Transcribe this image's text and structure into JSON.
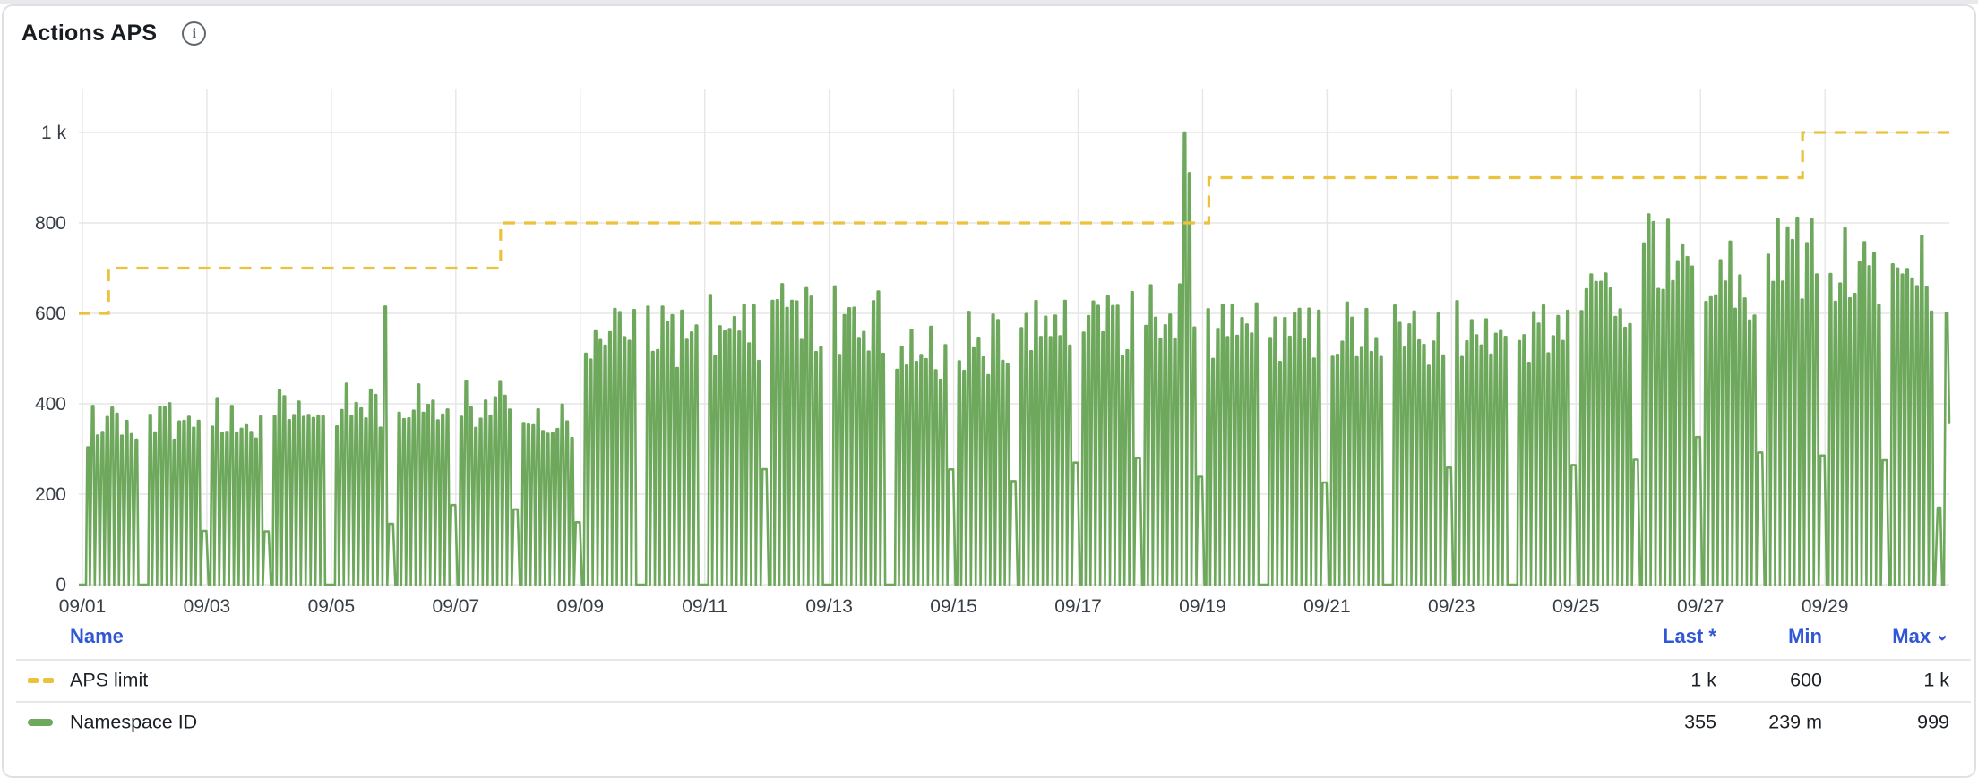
{
  "panel": {
    "title": "Actions APS",
    "info_glyph": "i"
  },
  "colors": {
    "green": "#6EA85C",
    "yellow": "#EAC23C",
    "blue": "#3257D6",
    "grid": "#E6E6E6",
    "axis_text": "#383E45",
    "legend_text": "#1B2026"
  },
  "chart_data": {
    "type": "line",
    "title": "Actions APS",
    "grid": true,
    "legend_position": "bottom-table",
    "x_axis": {
      "tick_labels": [
        "09/01",
        "09/03",
        "09/05",
        "09/07",
        "09/09",
        "09/11",
        "09/13",
        "09/15",
        "09/17",
        "09/19",
        "09/21",
        "09/23",
        "09/25",
        "09/27",
        "09/29"
      ],
      "tick_spacing_days": 2,
      "range_days": 30
    },
    "y_axis": {
      "min": 0,
      "max": 1000,
      "tick_step": 200,
      "tick_labels": [
        "0",
        "200",
        "400",
        "600",
        "800",
        "1 k"
      ]
    },
    "series": [
      {
        "name": "APS limit",
        "style": "dashed",
        "color": "#EAC23C",
        "steps": [
          {
            "start_day": 0,
            "end_day": 0.42,
            "value": 600
          },
          {
            "start_day": 0.42,
            "end_day": 6.72,
            "value": 700
          },
          {
            "start_day": 6.72,
            "end_day": 18.1,
            "value": 800
          },
          {
            "start_day": 18.1,
            "end_day": 27.64,
            "value": 900
          },
          {
            "start_day": 27.64,
            "end_day": 30,
            "value": 1000
          }
        ]
      },
      {
        "name": "Namespace ID",
        "style": "solid",
        "color": "#6EA85C",
        "pattern": "daily pulse clusters oscillating between 0 and the day's peak",
        "pulses_per_day": 11,
        "daily_peaks": [
          400,
          405,
          420,
          465,
          450,
          455,
          455,
          420,
          625,
          630,
          645,
          675,
          665,
          590,
          605,
          640,
          650,
          670,
          640,
          645,
          630,
          635,
          630,
          640,
          690,
          820,
          760,
          815,
          800,
          780
        ],
        "spikes": [
          {
            "day": 4.93,
            "value": 615
          },
          {
            "day": 17.7,
            "value": 1000
          },
          {
            "day": 17.79,
            "value": 910
          }
        ],
        "shoulder_days": [
          1,
          2,
          4,
          5,
          6,
          7,
          10,
          13,
          14,
          15,
          16,
          17,
          19,
          21,
          23,
          24,
          25,
          26,
          27,
          28
        ],
        "end_value": 355
      }
    ]
  },
  "legend_table": {
    "sort_indicator": "⌄",
    "headers": [
      {
        "label": "Name"
      },
      {
        "label": "Last *"
      },
      {
        "label": "Min"
      },
      {
        "label": "Max",
        "sorted": true
      }
    ],
    "rows": [
      {
        "name": "APS limit",
        "last": "1 k",
        "min": "600",
        "max": "1 k"
      },
      {
        "name": "Namespace ID",
        "last": "355",
        "min": "239 m",
        "max": "999"
      }
    ]
  }
}
